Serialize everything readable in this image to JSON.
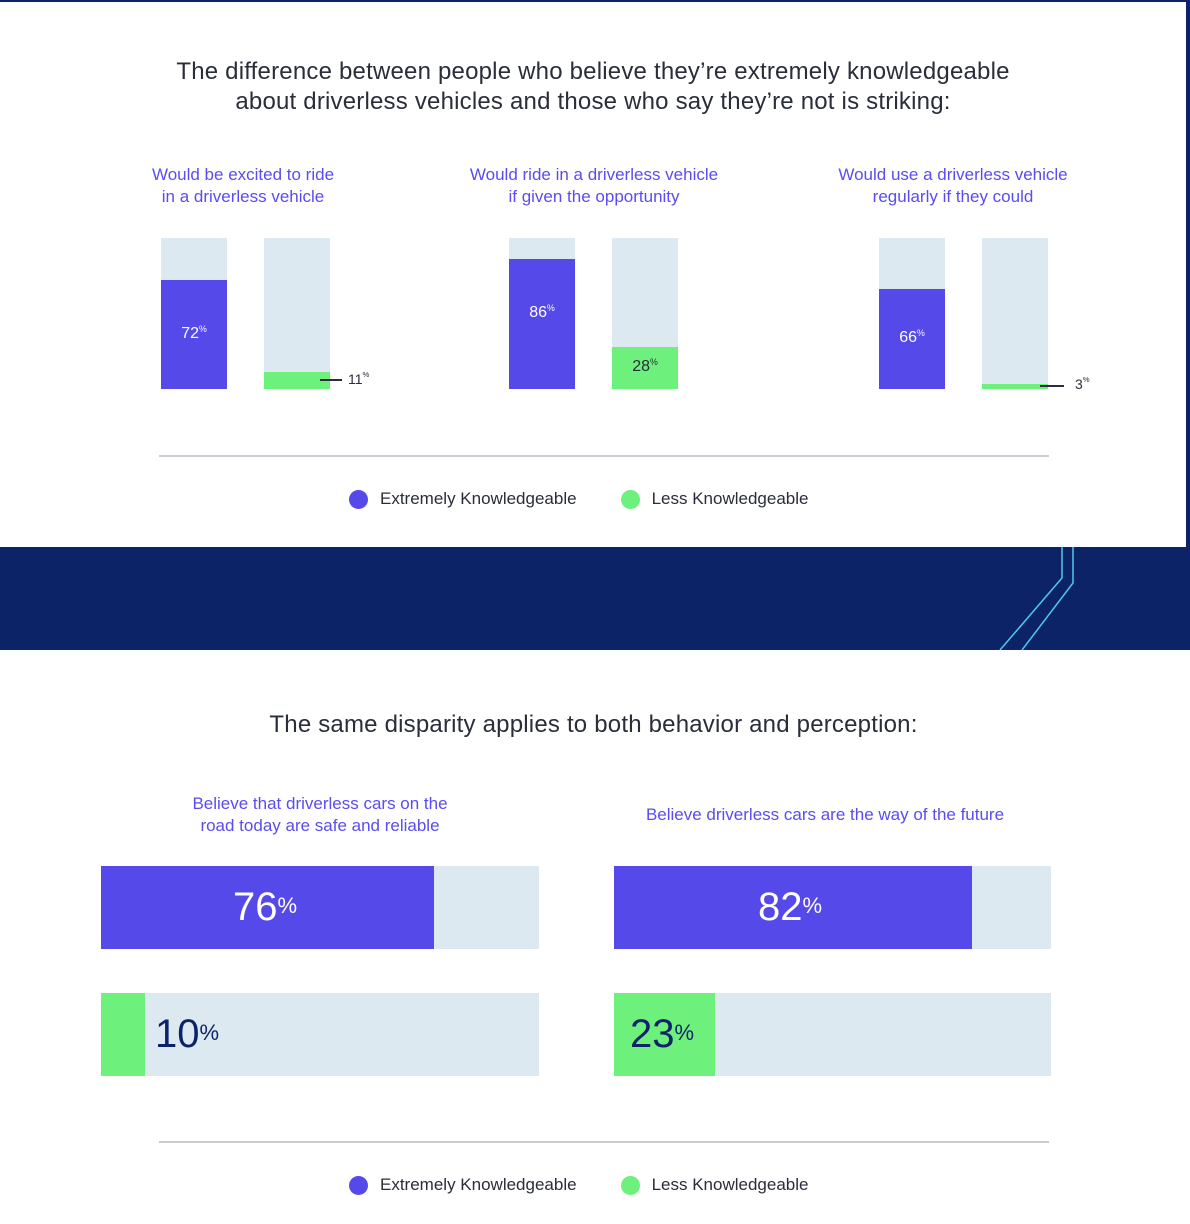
{
  "colors": {
    "extremely": "#5649ea",
    "less": "#6df07c",
    "track": "#dde9f1",
    "navy": "#0d2368",
    "text": "#2a2d3a",
    "subtitle": "#5a4cf0"
  },
  "section1": {
    "headline_line1": "The difference between people who believe they’re extremely knowledgeable",
    "headline_line2": "about driverless vehicles and those who say they’re not is striking:"
  },
  "section2": {
    "headline": "The same disparity applies to both behavior and perception:"
  },
  "legend": {
    "extremely": "Extremely Knowledgeable",
    "less": "Less Knowledgeable"
  },
  "chart_data": [
    {
      "type": "bar",
      "orientation": "vertical",
      "groups": [
        {
          "title_line1": "Would be excited to ride",
          "title_line2": "in a driverless vehicle",
          "extremely": 72,
          "less": 11,
          "extremely_label": "72",
          "less_label": "11"
        },
        {
          "title_line1": "Would ride in a driverless vehicle",
          "title_line2": "if given the opportunity",
          "extremely": 86,
          "less": 28,
          "extremely_label": "86",
          "less_label": "28"
        },
        {
          "title_line1": "Would use a driverless vehicle",
          "title_line2": "regularly if they could",
          "extremely": 66,
          "less": 3,
          "extremely_label": "66",
          "less_label": "3"
        }
      ],
      "percent_symbol": "%",
      "ylim": [
        0,
        100
      ]
    },
    {
      "type": "bar",
      "orientation": "horizontal",
      "groups": [
        {
          "title_line1": "Believe that driverless cars on the",
          "title_line2": "road today are safe and reliable",
          "extremely": 76,
          "less": 10,
          "extremely_label": "76",
          "less_label": "10"
        },
        {
          "title_line1": "Believe driverless cars are the way of the future",
          "title_line2": "",
          "extremely": 82,
          "less": 23,
          "extremely_label": "82",
          "less_label": "23"
        }
      ],
      "percent_symbol": "%",
      "xlim": [
        0,
        100
      ]
    }
  ]
}
